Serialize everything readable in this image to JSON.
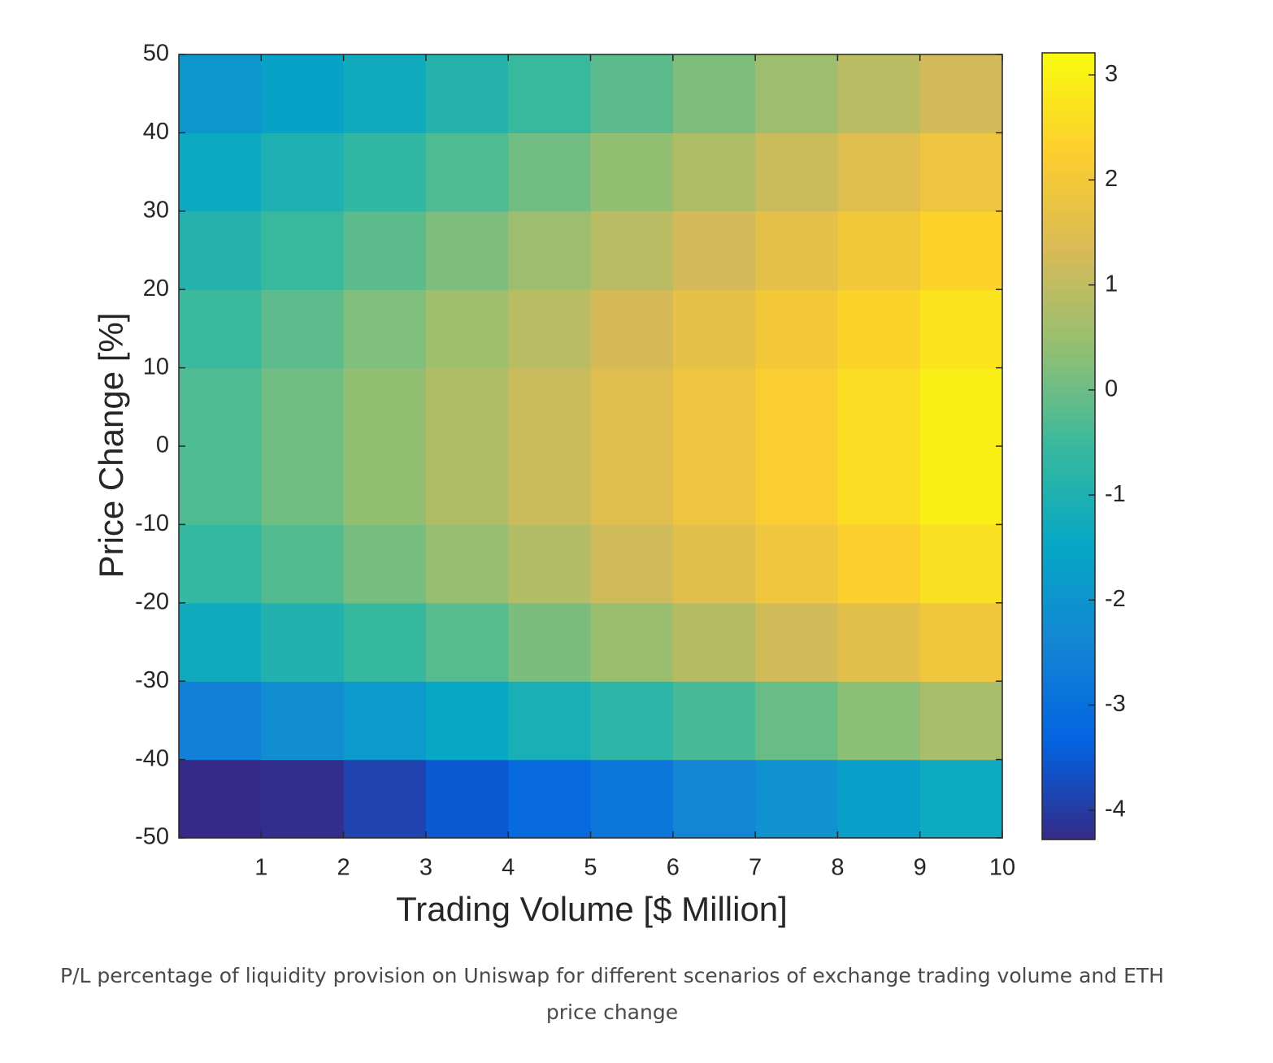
{
  "chart_data": {
    "type": "heatmap",
    "x_label": "Trading Volume [$ Million]",
    "y_label": "Price Change [%]",
    "caption": "P/L percentage of liquidity provision on Uniswap for different scenarios of exchange trading volume and ETH price change",
    "x": [
      0.5,
      1.5,
      2.5,
      3.5,
      4.5,
      5.5,
      6.5,
      7.5,
      8.5,
      9.5
    ],
    "y": [
      -45,
      -35,
      -25,
      -15,
      -5,
      5,
      15,
      25,
      35,
      45
    ],
    "z": [
      [
        -4.58,
        -4.22,
        -3.86,
        -3.5,
        -3.14,
        -2.78,
        -2.42,
        -2.06,
        -1.7,
        -1.34
      ],
      [
        -2.54,
        -2.18,
        -1.82,
        -1.46,
        -1.1,
        -0.74,
        -0.38,
        -0.02,
        0.34,
        0.7
      ],
      [
        -1.29,
        -0.93,
        -0.57,
        -0.21,
        0.15,
        0.51,
        0.87,
        1.23,
        1.59,
        1.95
      ],
      [
        -0.6,
        -0.24,
        0.12,
        0.48,
        0.84,
        1.2,
        1.56,
        1.92,
        2.28,
        2.64
      ],
      [
        -0.3,
        0.06,
        0.42,
        0.78,
        1.14,
        1.5,
        1.86,
        2.22,
        2.58,
        2.94
      ],
      [
        -0.3,
        0.06,
        0.42,
        0.78,
        1.14,
        1.5,
        1.86,
        2.22,
        2.58,
        2.94
      ],
      [
        -0.51,
        -0.15,
        0.21,
        0.57,
        0.93,
        1.29,
        1.65,
        2.01,
        2.37,
        2.73
      ],
      [
        -0.89,
        -0.53,
        -0.17,
        0.19,
        0.55,
        0.91,
        1.27,
        1.63,
        1.99,
        2.35
      ],
      [
        -1.38,
        -1.02,
        -0.66,
        -0.3,
        0.06,
        0.42,
        0.78,
        1.14,
        1.5,
        1.86
      ],
      [
        -1.97,
        -1.61,
        -1.25,
        -0.89,
        -0.53,
        -0.17,
        0.19,
        0.55,
        0.91,
        1.27
      ]
    ],
    "xlim": [
      0,
      10
    ],
    "xticks": [
      1,
      2,
      3,
      4,
      5,
      6,
      7,
      8,
      9,
      10
    ],
    "ylim": [
      -50,
      50
    ],
    "yticks": [
      -50,
      -40,
      -30,
      -20,
      -10,
      0,
      10,
      20,
      30,
      40,
      50
    ],
    "colormap": "parula",
    "clim": [
      -4.28,
      3.21
    ],
    "cticks": [
      -4,
      -3,
      -2,
      -1,
      0,
      1,
      2,
      3
    ]
  }
}
